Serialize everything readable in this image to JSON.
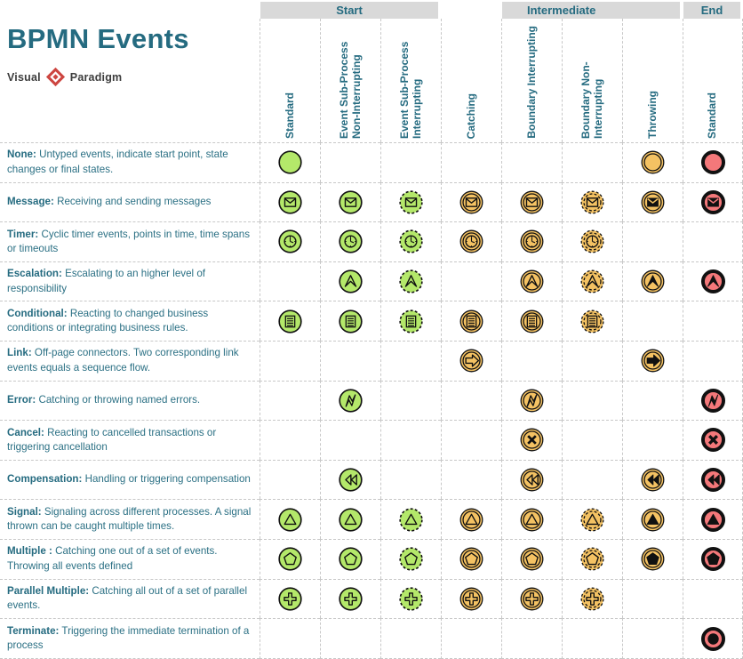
{
  "title": "BPMN Events",
  "logo": {
    "left": "Visual",
    "right": "Paradigm"
  },
  "colors": {
    "teal": "#256b80",
    "band_gray": "#d9d9d9",
    "grid_dash": "#c8c8c8",
    "green": "#b4e86a",
    "orange": "#f4c263",
    "red": "#f4787a",
    "ink": "#111111"
  },
  "groups": [
    {
      "key": "start",
      "label": "Start"
    },
    {
      "key": "intermediate",
      "label": "Intermediate"
    },
    {
      "key": "end",
      "label": "End"
    }
  ],
  "columns": [
    {
      "key": "start-standard",
      "label": "Standard",
      "variant": "single"
    },
    {
      "key": "start-event-subprocess-non-interrupting",
      "label": "Event Sub-Process Non-Interrupting",
      "variant": "single"
    },
    {
      "key": "start-event-subprocess-interrupting",
      "label": "Event Sub-Process Interrupting",
      "variant": "single-dashed"
    },
    {
      "key": "intermediate-catching",
      "label": "Catching",
      "variant": "double"
    },
    {
      "key": "intermediate-boundary-interrupting",
      "label": "Boundary Interrupting",
      "variant": "double"
    },
    {
      "key": "intermediate-boundary-non-interrupting",
      "label": "Boundary Non-Interrupting",
      "variant": "double-dashed"
    },
    {
      "key": "intermediate-throwing",
      "label": "Throwing",
      "variant": "double-filled"
    },
    {
      "key": "end-standard",
      "label": "Standard",
      "variant": "end"
    }
  ],
  "rows": [
    {
      "key": "none",
      "bold": "None:",
      "rest": " Untyped events, indicate start point, state changes or final states.",
      "marker": "none",
      "cells": [
        1,
        0,
        0,
        0,
        0,
        0,
        1,
        1
      ]
    },
    {
      "key": "message",
      "bold": "Message:",
      "rest": " Receiving and sending messages",
      "marker": "message",
      "cells": [
        1,
        1,
        1,
        1,
        1,
        1,
        1,
        1
      ]
    },
    {
      "key": "timer",
      "bold": "Timer:",
      "rest": " Cyclic timer events, points in time, time spans or timeouts",
      "marker": "timer",
      "cells": [
        1,
        1,
        1,
        1,
        1,
        1,
        0,
        0
      ]
    },
    {
      "key": "escalation",
      "bold": "Escalation:",
      "rest": " Escalating to an higher level of responsibility",
      "marker": "escalation",
      "cells": [
        0,
        1,
        1,
        0,
        1,
        1,
        1,
        1
      ]
    },
    {
      "key": "conditional",
      "bold": "Conditional:",
      "rest": " Reacting to changed business conditions or integrating business rules.",
      "marker": "conditional",
      "cells": [
        1,
        1,
        1,
        1,
        1,
        1,
        0,
        0
      ]
    },
    {
      "key": "link",
      "bold": "Link:",
      "rest": " Off-page connectors. Two corresponding link events equals a sequence flow.",
      "marker": "link",
      "cells": [
        0,
        0,
        0,
        1,
        0,
        0,
        1,
        0
      ]
    },
    {
      "key": "error",
      "bold": "Error:",
      "rest": " Catching or throwing named errors.",
      "marker": "error",
      "cells": [
        0,
        1,
        0,
        0,
        1,
        0,
        0,
        1
      ]
    },
    {
      "key": "cancel",
      "bold": "Cancel:",
      "rest": " Reacting to cancelled transactions or triggering cancellation",
      "marker": "cancel",
      "cells": [
        0,
        0,
        0,
        0,
        1,
        0,
        0,
        1
      ]
    },
    {
      "key": "compensation",
      "bold": "Compensation:",
      "rest": " Handling or triggering compensation",
      "marker": "compensation",
      "cells": [
        0,
        1,
        0,
        0,
        1,
        0,
        1,
        1
      ]
    },
    {
      "key": "signal",
      "bold": "Signal:",
      "rest": " Signaling across different processes. A signal thrown can be caught multiple times.",
      "marker": "signal",
      "cells": [
        1,
        1,
        1,
        1,
        1,
        1,
        1,
        1
      ]
    },
    {
      "key": "multiple",
      "bold": "Multiple :",
      "rest": " Catching one out of a set of events. Throwing all events defined",
      "marker": "multiple",
      "cells": [
        1,
        1,
        1,
        1,
        1,
        1,
        1,
        1
      ]
    },
    {
      "key": "parallel-multiple",
      "bold": "Parallel Multiple:",
      "rest": " Catching all out of a set of parallel events.",
      "marker": "parallel",
      "cells": [
        1,
        1,
        1,
        1,
        1,
        1,
        0,
        0
      ]
    },
    {
      "key": "terminate",
      "bold": "Terminate:",
      "rest": " Triggering the immediate termination of a process",
      "marker": "terminate",
      "cells": [
        0,
        0,
        0,
        0,
        0,
        0,
        0,
        1
      ]
    }
  ]
}
